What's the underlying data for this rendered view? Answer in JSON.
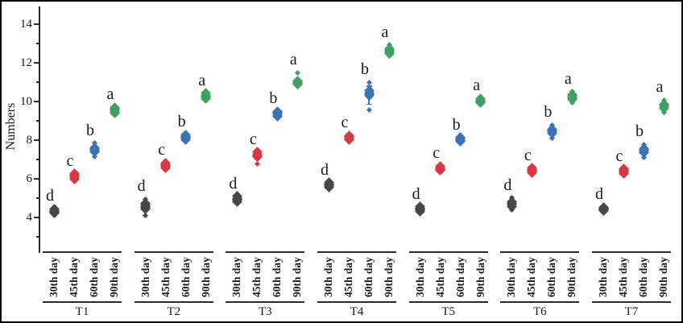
{
  "chart_data": {
    "type": "scatter",
    "title": "",
    "xlabel": "",
    "ylabel": "Numbers",
    "ylim": [
      2.2,
      14.9
    ],
    "y_major_ticks": [
      4,
      6,
      8,
      10,
      12,
      14
    ],
    "y_minor_ticks": [
      3,
      5,
      7,
      9,
      11,
      13
    ],
    "grid": "off",
    "legend": "none",
    "categories": [
      "30th day",
      "45th day",
      "60th day",
      "90th day"
    ],
    "category_colors": [
      "#474747",
      "#d63844",
      "#3b73b5",
      "#3fa062"
    ],
    "groups": [
      {
        "label": "T1",
        "points": [
          {
            "category": "30th day",
            "letter": "d",
            "mean": 4.32,
            "values": [
              4.22,
              4.28,
              4.32,
              4.36,
              4.45
            ]
          },
          {
            "category": "45th day",
            "letter": "c",
            "mean": 6.13,
            "values": [
              6.0,
              6.08,
              6.13,
              6.18,
              6.26
            ]
          },
          {
            "category": "60th day",
            "letter": "b",
            "mean": 7.5,
            "values": [
              7.15,
              7.4,
              7.48,
              7.52,
              7.6,
              7.85
            ]
          },
          {
            "category": "90th day",
            "letter": "a",
            "mean": 9.55,
            "values": [
              9.4,
              9.5,
              9.55,
              9.6,
              9.7
            ]
          }
        ]
      },
      {
        "label": "T2",
        "points": [
          {
            "category": "30th day",
            "letter": "d",
            "mean": 4.57,
            "values": [
              4.12,
              4.42,
              4.52,
              4.58,
              4.64,
              4.72,
              4.95
            ]
          },
          {
            "category": "45th day",
            "letter": "c",
            "mean": 6.7,
            "values": [
              6.58,
              6.65,
              6.7,
              6.75,
              6.83
            ]
          },
          {
            "category": "60th day",
            "letter": "b",
            "mean": 8.15,
            "values": [
              8.02,
              8.1,
              8.15,
              8.2,
              8.28
            ]
          },
          {
            "category": "90th day",
            "letter": "a",
            "mean": 10.28,
            "values": [
              10.15,
              10.22,
              10.28,
              10.33,
              10.42
            ]
          }
        ]
      },
      {
        "label": "T3",
        "points": [
          {
            "category": "30th day",
            "letter": "d",
            "mean": 4.95,
            "values": [
              4.82,
              4.9,
              4.95,
              5.0,
              5.1
            ]
          },
          {
            "category": "45th day",
            "letter": "c",
            "mean": 7.15,
            "values": [
              6.78,
              7.02,
              7.15,
              7.2,
              7.26,
              7.38
            ]
          },
          {
            "category": "60th day",
            "letter": "b",
            "mean": 9.38,
            "values": [
              9.25,
              9.32,
              9.38,
              9.42,
              9.5
            ]
          },
          {
            "category": "90th day",
            "letter": "a",
            "mean": 11.0,
            "values": [
              10.78,
              10.88,
              10.95,
              11.0,
              11.06,
              11.5
            ]
          }
        ]
      },
      {
        "label": "T4",
        "points": [
          {
            "category": "30th day",
            "letter": "d",
            "mean": 5.68,
            "values": [
              5.58,
              5.64,
              5.68,
              5.72,
              5.8
            ]
          },
          {
            "category": "45th day",
            "letter": "c",
            "mean": 8.13,
            "values": [
              8.02,
              8.08,
              8.13,
              8.18,
              8.25
            ]
          },
          {
            "category": "60th day",
            "letter": "b",
            "mean": 10.38,
            "values": [
              9.55,
              10.2,
              10.3,
              10.38,
              10.45,
              10.55,
              11.0
            ],
            "bar": [
              9.85,
              10.8
            ]
          },
          {
            "category": "90th day",
            "letter": "a",
            "mean": 12.6,
            "values": [
              12.35,
              12.5,
              12.58,
              12.64,
              12.72,
              12.92
            ]
          }
        ]
      },
      {
        "label": "T5",
        "points": [
          {
            "category": "30th day",
            "letter": "d",
            "mean": 4.43,
            "values": [
              4.3,
              4.38,
              4.43,
              4.48,
              4.56
            ]
          },
          {
            "category": "45th day",
            "letter": "c",
            "mean": 6.54,
            "values": [
              6.42,
              6.5,
              6.54,
              6.58,
              6.66
            ]
          },
          {
            "category": "60th day",
            "letter": "b",
            "mean": 8.03,
            "values": [
              7.92,
              7.98,
              8.03,
              8.08,
              8.14
            ]
          },
          {
            "category": "90th day",
            "letter": "a",
            "mean": 10.04,
            "values": [
              9.92,
              10.0,
              10.04,
              10.08,
              10.16
            ]
          }
        ]
      },
      {
        "label": "T6",
        "points": [
          {
            "category": "30th day",
            "letter": "d",
            "mean": 4.7,
            "values": [
              4.38,
              4.58,
              4.68,
              4.74,
              4.8,
              5.02
            ]
          },
          {
            "category": "45th day",
            "letter": "c",
            "mean": 6.44,
            "values": [
              6.32,
              6.4,
              6.44,
              6.48,
              6.56
            ]
          },
          {
            "category": "60th day",
            "letter": "b",
            "mean": 8.45,
            "values": [
              8.12,
              8.35,
              8.42,
              8.48,
              8.55,
              8.78
            ]
          },
          {
            "category": "90th day",
            "letter": "a",
            "mean": 10.25,
            "values": [
              9.92,
              10.12,
              10.2,
              10.28,
              10.35,
              10.52
            ]
          }
        ]
      },
      {
        "label": "T7",
        "points": [
          {
            "category": "30th day",
            "letter": "d",
            "mean": 4.44,
            "values": [
              4.34,
              4.4,
              4.44,
              4.48,
              4.54
            ]
          },
          {
            "category": "45th day",
            "letter": "c",
            "mean": 6.4,
            "values": [
              6.28,
              6.36,
              6.4,
              6.44,
              6.52
            ]
          },
          {
            "category": "60th day",
            "letter": "b",
            "mean": 7.46,
            "values": [
              7.12,
              7.35,
              7.44,
              7.5,
              7.56,
              7.78
            ]
          },
          {
            "category": "90th day",
            "letter": "a",
            "mean": 9.76,
            "values": [
              9.42,
              9.65,
              9.74,
              9.8,
              9.86,
              10.08
            ]
          }
        ]
      }
    ]
  }
}
